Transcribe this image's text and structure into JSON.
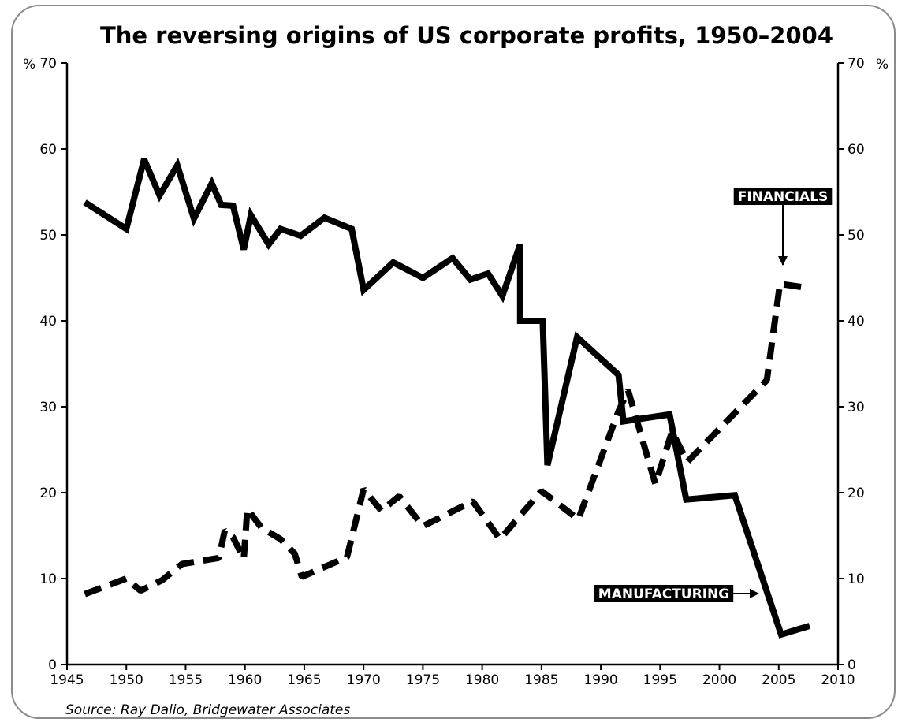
{
  "chart_data": {
    "type": "line",
    "title": "The reversing origins of US corporate profits, 1950–2004",
    "ylabel_left": "%",
    "ylabel_right": "%",
    "source": "Source: Ray Dalio, Bridgewater Associates",
    "xlim": [
      1945,
      2010
    ],
    "ylim": [
      0,
      70
    ],
    "x_ticks": [
      1945,
      1950,
      1955,
      1960,
      1965,
      1970,
      1975,
      1980,
      1985,
      1990,
      1995,
      2000,
      2005,
      2010
    ],
    "y_ticks": [
      0,
      10,
      20,
      30,
      40,
      50,
      60,
      70
    ],
    "grid": false,
    "series": [
      {
        "name": "MANUFACTURING",
        "style": "solid",
        "color": "#000000",
        "points": [
          [
            1946.5,
            53.8
          ],
          [
            1950,
            50.7
          ],
          [
            1951.5,
            58.8
          ],
          [
            1952.8,
            54.6
          ],
          [
            1954.3,
            58.1
          ],
          [
            1955.7,
            51.9
          ],
          [
            1957.2,
            56.0
          ],
          [
            1958,
            53.5
          ],
          [
            1959,
            53.4
          ],
          [
            1959.9,
            48.3
          ],
          [
            1960.5,
            52.3
          ],
          [
            1962,
            48.9
          ],
          [
            1963,
            50.7
          ],
          [
            1964.7,
            49.9
          ],
          [
            1966.7,
            52.0
          ],
          [
            1969,
            50.7
          ],
          [
            1970,
            43.6
          ],
          [
            1972.5,
            46.8
          ],
          [
            1975,
            45.0
          ],
          [
            1977.5,
            47.3
          ],
          [
            1979,
            44.8
          ],
          [
            1980.5,
            45.5
          ],
          [
            1981.7,
            42.9
          ],
          [
            1983.2,
            48.9
          ],
          [
            1983.2,
            40.0
          ],
          [
            1985.1,
            40.0
          ],
          [
            1985.5,
            23.2
          ],
          [
            1988,
            38.1
          ],
          [
            1991.5,
            33.7
          ],
          [
            1991.9,
            28.3
          ],
          [
            1995.8,
            29.1
          ],
          [
            1997.2,
            19.2
          ],
          [
            2001.3,
            19.7
          ],
          [
            2005.2,
            3.5
          ],
          [
            2007.6,
            4.5
          ]
        ]
      },
      {
        "name": "FINANCIALS",
        "style": "dashed",
        "color": "#000000",
        "points": [
          [
            1946.5,
            8.2
          ],
          [
            1950,
            10.0
          ],
          [
            1951.2,
            8.6
          ],
          [
            1953,
            9.8
          ],
          [
            1954.7,
            11.7
          ],
          [
            1957.8,
            12.4
          ],
          [
            1958.3,
            15.6
          ],
          [
            1959,
            14.8
          ],
          [
            1959.9,
            12.3
          ],
          [
            1960.2,
            18.1
          ],
          [
            1961.4,
            15.9
          ],
          [
            1963,
            14.6
          ],
          [
            1964.2,
            12.9
          ],
          [
            1964.8,
            10.2
          ],
          [
            1968.6,
            12.5
          ],
          [
            1970,
            20.4
          ],
          [
            1971.5,
            17.9
          ],
          [
            1973,
            19.6
          ],
          [
            1975,
            16.1
          ],
          [
            1979.2,
            19.0
          ],
          [
            1981.5,
            14.6
          ],
          [
            1985,
            20.2
          ],
          [
            1988.1,
            16.9
          ],
          [
            1991.5,
            29.5
          ],
          [
            1992.3,
            31.9
          ],
          [
            1994.6,
            21.0
          ],
          [
            1996,
            27.1
          ],
          [
            1997.3,
            23.6
          ],
          [
            2004,
            33.1
          ],
          [
            2005.1,
            44.3
          ],
          [
            2007.6,
            43.8
          ]
        ]
      }
    ],
    "annotations": [
      {
        "text": "FINANCIALS",
        "series": "FINANCIALS"
      },
      {
        "text": "MANUFACTURING",
        "series": "MANUFACTURING"
      }
    ]
  }
}
